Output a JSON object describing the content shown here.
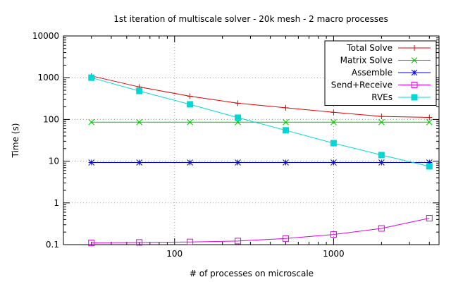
{
  "chart_data": {
    "type": "line",
    "title": "1st iteration of multiscale solver - 20k mesh - 2 macro processes",
    "xlabel": "# of processes on microscale",
    "ylabel": "Time (s)",
    "xscale": "log",
    "yscale": "log",
    "xlim": [
      20,
      4600
    ],
    "ylim": [
      0.1,
      10000
    ],
    "grid": true,
    "legend_position": "top-right",
    "x_ticks": [
      {
        "value": 100,
        "label": "100"
      },
      {
        "value": 1000,
        "label": "1000"
      }
    ],
    "y_ticks": [
      {
        "value": 0.1,
        "label": "0.1"
      },
      {
        "value": 1,
        "label": "1"
      },
      {
        "value": 10,
        "label": "10"
      },
      {
        "value": 100,
        "label": "100"
      },
      {
        "value": 1000,
        "label": "1000"
      },
      {
        "value": 10000,
        "label": "10000"
      }
    ],
    "x": [
      30,
      60,
      125,
      250,
      500,
      1000,
      2000,
      4000
    ],
    "series": [
      {
        "name": "Total Solve",
        "color": "#e00000",
        "marker": "plus",
        "values": [
          1100,
          600,
          360,
          245,
          190,
          148,
          118,
          112
        ]
      },
      {
        "name": "Matrix Solve",
        "color": "#00c000",
        "marker": "cross",
        "values": [
          86,
          86,
          86,
          86,
          86,
          86,
          86,
          86
        ]
      },
      {
        "name": "Assemble",
        "color": "#0000e0",
        "marker": "star",
        "values": [
          9.3,
          9.3,
          9.3,
          9.3,
          9.3,
          9.3,
          9.3,
          9.3
        ]
      },
      {
        "name": "Send+Receive",
        "color": "#e000e0",
        "marker": "open-square",
        "values": [
          0.11,
          0.113,
          0.116,
          0.122,
          0.14,
          0.175,
          0.245,
          0.43
        ]
      },
      {
        "name": "RVEs",
        "color": "#00d8d8",
        "marker": "filled-square",
        "values": [
          1000,
          480,
          230,
          110,
          55,
          27,
          14,
          7.5
        ]
      }
    ]
  }
}
